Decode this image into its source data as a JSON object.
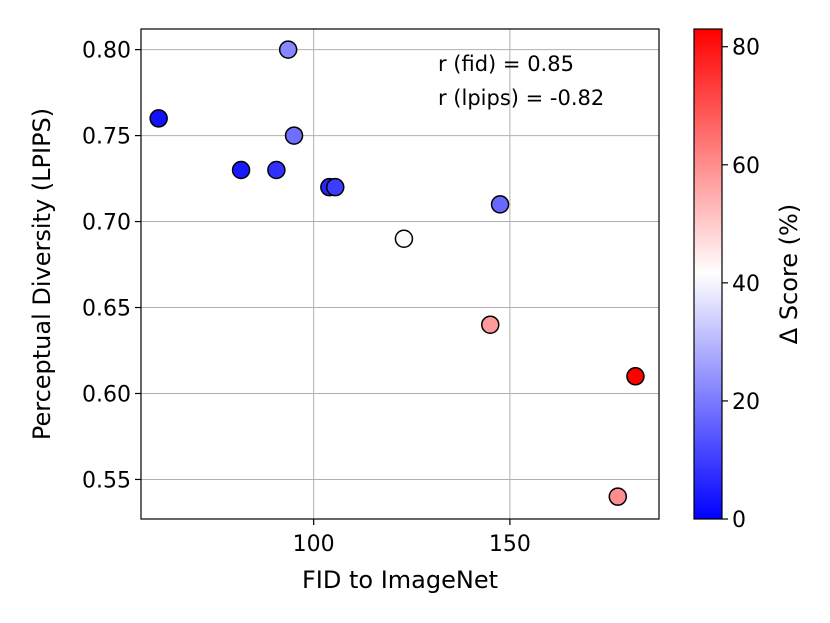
{
  "chart_data": {
    "type": "scatter",
    "xlabel": "FID to ImageNet",
    "ylabel": "Perceptual Diversity (LPIPS)",
    "xlim": [
      56,
      188
    ],
    "ylim": [
      0.527,
      0.812
    ],
    "xticks": [
      100,
      150
    ],
    "xtick_labels": [
      "100",
      "150"
    ],
    "yticks": [
      0.55,
      0.6,
      0.65,
      0.7,
      0.75,
      0.8
    ],
    "ytick_labels": [
      "0.55",
      "0.60",
      "0.65",
      "0.70",
      "0.75",
      "0.80"
    ],
    "grid": true,
    "annotations": [
      "r (fid) = 0.85",
      "r (lpips) = -0.82"
    ],
    "colorbar": {
      "label": "Δ Score (%)",
      "range": [
        0,
        83
      ],
      "ticks": [
        0,
        20,
        40,
        60,
        80
      ],
      "tick_labels": [
        "0",
        "20",
        "40",
        "60",
        "80"
      ],
      "colormap": "bwr",
      "colors": {
        "low": "#0000ff",
        "mid": "#ffffff",
        "high": "#ff0000"
      }
    },
    "points": [
      {
        "x": 60.5,
        "y": 0.76,
        "score": 3
      },
      {
        "x": 81.5,
        "y": 0.73,
        "score": 4
      },
      {
        "x": 90.5,
        "y": 0.73,
        "score": 8
      },
      {
        "x": 93.5,
        "y": 0.8,
        "score": 22
      },
      {
        "x": 95.0,
        "y": 0.75,
        "score": 18
      },
      {
        "x": 104.0,
        "y": 0.72,
        "score": 6
      },
      {
        "x": 105.5,
        "y": 0.72,
        "score": 10
      },
      {
        "x": 123.0,
        "y": 0.69,
        "score": 41
      },
      {
        "x": 145.0,
        "y": 0.64,
        "score": 58
      },
      {
        "x": 147.5,
        "y": 0.71,
        "score": 17
      },
      {
        "x": 177.5,
        "y": 0.54,
        "score": 60
      },
      {
        "x": 182.0,
        "y": 0.61,
        "score": 83
      }
    ]
  }
}
